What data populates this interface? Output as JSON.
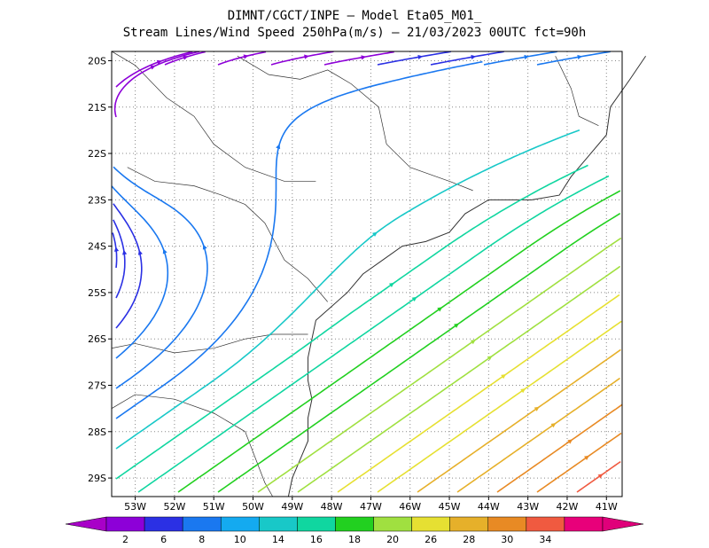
{
  "title": {
    "line1": "DIMNT/CGCT/INPE –  Model Eta05_M01_",
    "line2": "Stream Lines/Wind Speed 250hPa(m/s) –  21/03/2023 00UTC fct=90h"
  },
  "axes": {
    "lat_labels": [
      "20S",
      "21S",
      "22S",
      "23S",
      "24S",
      "25S",
      "26S",
      "27S",
      "28S",
      "29S"
    ],
    "lat_values": [
      -20,
      -21,
      -22,
      -23,
      -24,
      -25,
      -26,
      -27,
      -28,
      -29
    ],
    "lon_labels": [
      "53W",
      "52W",
      "51W",
      "50W",
      "49W",
      "48W",
      "47W",
      "46W",
      "45W",
      "44W",
      "43W",
      "42W",
      "41W"
    ],
    "lon_values": [
      -53,
      -52,
      -51,
      -50,
      -49,
      -48,
      -47,
      -46,
      -45,
      -44,
      -43,
      -42,
      -41
    ],
    "lat_range": [
      -29.4,
      -19.8
    ],
    "lon_range": [
      -53.6,
      -40.6
    ],
    "grid": true
  },
  "colorbar": {
    "labels": [
      "2",
      "6",
      "8",
      "10",
      "14",
      "16",
      "18",
      "20",
      "26",
      "28",
      "30",
      "34"
    ],
    "colors": [
      "#8d00d8",
      "#2b30e4",
      "#1a78f0",
      "#14aaf0",
      "#18c8c8",
      "#10d6a0",
      "#22d020",
      "#a0e040",
      "#e6e032",
      "#e6b02a",
      "#e88a24",
      "#f05a40",
      "#e8007a"
    ],
    "left_color": "#a800c8",
    "right_color": "#e0007a"
  },
  "colors": {
    "coastline": "#333333",
    "grid": "#888888"
  }
}
